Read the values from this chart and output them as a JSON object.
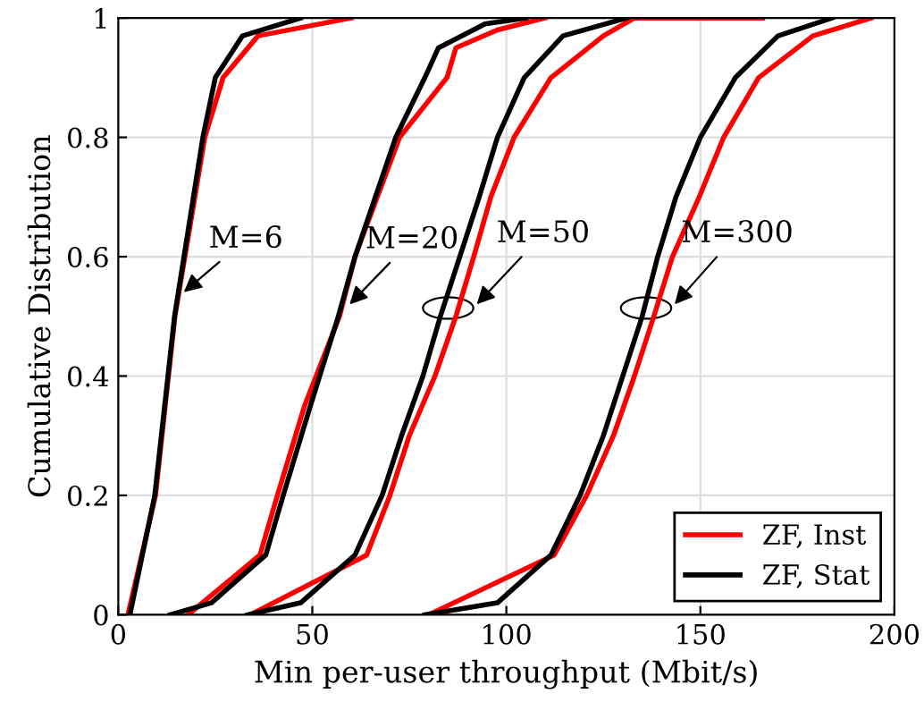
{
  "chart_data": {
    "type": "line",
    "xlabel": "Min per-user throughput (Mbit/s)",
    "ylabel": "Cumulative Distribution",
    "xlim": [
      0,
      200
    ],
    "ylim": [
      0,
      1
    ],
    "xticks": [
      0,
      50,
      100,
      150,
      200
    ],
    "yticks": [
      0,
      0.2,
      0.4,
      0.6,
      0.8,
      1
    ],
    "grid": true,
    "legend": "bottom right",
    "line_style": "solid",
    "series": [
      {
        "name": "ZF, Inst",
        "color": "#ff0000",
        "x": [
          2.5,
          9.6,
          14.6,
          22.3,
          27,
          36,
          60
        ],
        "values": [
          0,
          0.2,
          0.5,
          0.8,
          0.9,
          0.97,
          1
        ]
      },
      {
        "name": "ZF, Stat",
        "color": "#000000",
        "x": [
          3,
          9.4,
          14.5,
          21.8,
          25,
          32,
          47
        ],
        "values": [
          0,
          0.2,
          0.5,
          0.8,
          0.9,
          0.97,
          1
        ]
      },
      {
        "color": "#ff0000",
        "x": [
          18,
          36.5,
          41,
          48,
          57,
          61,
          72.5,
          84.7,
          87,
          97.7,
          110
        ],
        "values": [
          0,
          0.1,
          0.2,
          0.35,
          0.5,
          0.6,
          0.8,
          0.9,
          0.95,
          0.98,
          1
        ]
      },
      {
        "color": "#000000",
        "x": [
          13.4,
          24,
          38,
          42.5,
          49.5,
          56.7,
          61,
          71.5,
          79,
          82.5,
          94.5,
          105
        ],
        "values": [
          0,
          0.02,
          0.1,
          0.2,
          0.35,
          0.5,
          0.6,
          0.8,
          0.9,
          0.95,
          0.99,
          1
        ]
      },
      {
        "color": "#ff0000",
        "x": [
          34,
          64,
          70,
          75,
          81.6,
          87,
          91.6,
          96,
          102,
          111.5,
          125,
          133,
          166
        ],
        "values": [
          0,
          0.1,
          0.2,
          0.3,
          0.4,
          0.5,
          0.6,
          0.7,
          0.8,
          0.9,
          0.97,
          1,
          1
        ]
      },
      {
        "color": "#000000",
        "x": [
          33.4,
          47,
          61,
          68,
          73,
          78.5,
          83,
          88,
          93,
          97.7,
          104.6,
          114.6,
          131
        ],
        "values": [
          0,
          0.02,
          0.1,
          0.2,
          0.3,
          0.4,
          0.5,
          0.6,
          0.7,
          0.8,
          0.9,
          0.97,
          1
        ]
      },
      {
        "color": "#ff0000",
        "x": [
          80,
          112.3,
          120.7,
          127.6,
          133,
          138,
          142.8,
          149.7,
          156,
          165,
          179,
          194
        ],
        "values": [
          0,
          0.1,
          0.2,
          0.3,
          0.4,
          0.5,
          0.6,
          0.7,
          0.8,
          0.9,
          0.97,
          1
        ]
      },
      {
        "color": "#000000",
        "x": [
          79,
          97.7,
          111.5,
          119,
          125,
          130,
          135,
          139,
          143.7,
          150,
          159,
          170,
          184
        ],
        "values": [
          0,
          0.02,
          0.1,
          0.2,
          0.3,
          0.4,
          0.5,
          0.6,
          0.7,
          0.8,
          0.9,
          0.97,
          1
        ]
      }
    ],
    "annotations": [
      {
        "text": "M=6",
        "x": 15.9,
        "y": 0.535
      },
      {
        "text": "M=20",
        "x": 58.7,
        "y": 0.514
      },
      {
        "text": "M=50",
        "x": 87,
        "y": 0.5
      },
      {
        "text": "M=300",
        "x": 138,
        "y": 0.5
      }
    ]
  }
}
